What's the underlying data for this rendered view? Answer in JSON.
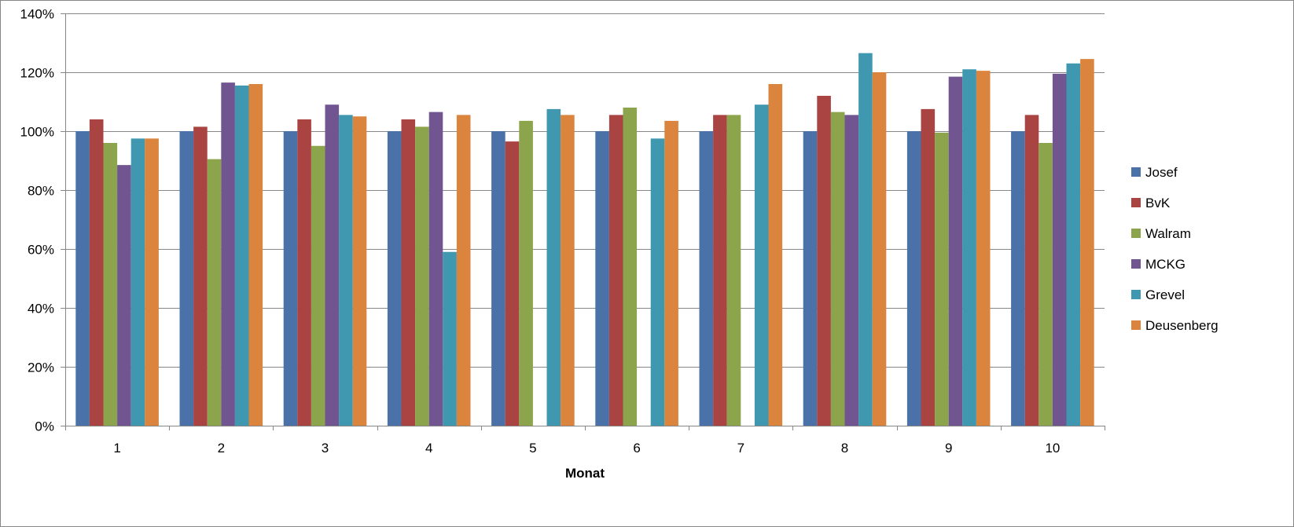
{
  "chart_data": {
    "type": "bar",
    "title": "",
    "xlabel": "Monat",
    "ylabel": "",
    "ylim": [
      0,
      140
    ],
    "ytick_step": 20,
    "ytick_suffix": "%",
    "grid": true,
    "legend_position": "right",
    "categories": [
      "1",
      "2",
      "3",
      "4",
      "5",
      "6",
      "7",
      "8",
      "9",
      "10"
    ],
    "series": [
      {
        "name": "Josef",
        "color": "#4A72A8",
        "values": [
          100,
          100,
          100,
          100,
          100,
          100,
          100,
          100,
          100,
          100
        ]
      },
      {
        "name": "BvK",
        "color": "#A94442",
        "values": [
          104,
          101.5,
          104,
          104,
          96.5,
          105.5,
          105.5,
          112,
          107.5,
          105.5
        ]
      },
      {
        "name": "Walram",
        "color": "#8CA54C",
        "values": [
          96,
          90.5,
          95,
          101.5,
          103.5,
          108,
          105.5,
          106.5,
          99.5,
          96
        ]
      },
      {
        "name": "MCKG",
        "color": "#715591",
        "values": [
          88.5,
          116.5,
          109,
          106.5,
          0,
          0,
          0,
          105.5,
          118.5,
          119.5
        ]
      },
      {
        "name": "Grevel",
        "color": "#4098B0",
        "values": [
          97.5,
          115.5,
          105.5,
          59,
          107.5,
          97.5,
          109,
          126.5,
          121,
          123
        ]
      },
      {
        "name": "Deusenberg",
        "color": "#DB843D",
        "values": [
          97.5,
          116,
          105,
          105.5,
          105.5,
          103.5,
          116,
          120,
          120.5,
          124.5
        ]
      }
    ]
  }
}
